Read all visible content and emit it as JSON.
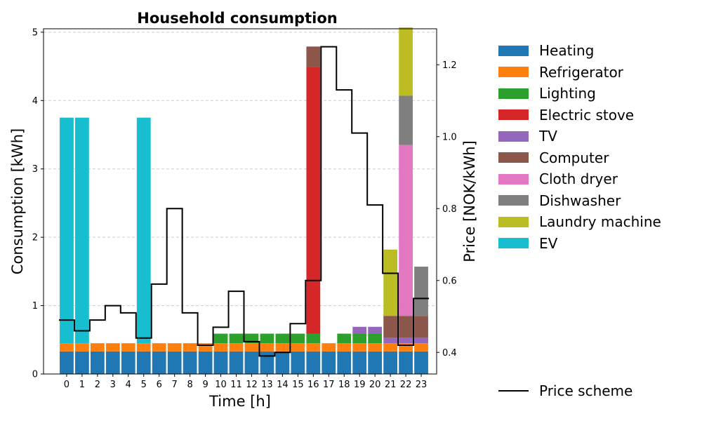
{
  "chart_data": {
    "type": "bar",
    "title": "Household consumption",
    "xlabel": "Time [h]",
    "ylabel": "Consumption [kWh]",
    "y2label": "Price [NOK/kWh]",
    "categories": [
      "0",
      "1",
      "2",
      "3",
      "4",
      "5",
      "6",
      "7",
      "8",
      "9",
      "10",
      "11",
      "12",
      "13",
      "14",
      "15",
      "16",
      "17",
      "18",
      "19",
      "20",
      "21",
      "22",
      "23"
    ],
    "ylim": [
      0,
      5.05
    ],
    "yticks": [
      "0",
      "1",
      "2",
      "3",
      "4",
      "5"
    ],
    "y2lim": [
      0.34,
      1.3
    ],
    "y2ticks": [
      0.4,
      0.6,
      0.8,
      1.0,
      1.2
    ],
    "y2ticklabels": [
      "0.4",
      "0.6",
      "0.8",
      "1.0",
      "1.2"
    ],
    "grid": "horizontal dashed",
    "legend_position": "right",
    "series": [
      {
        "name": "Heating",
        "color": "#1f77b4",
        "values": [
          0.33,
          0.33,
          0.33,
          0.33,
          0.33,
          0.33,
          0.33,
          0.33,
          0.33,
          0.33,
          0.33,
          0.33,
          0.33,
          0.33,
          0.33,
          0.33,
          0.33,
          0.33,
          0.33,
          0.33,
          0.33,
          0.33,
          0.33,
          0.33
        ]
      },
      {
        "name": "Refrigerator",
        "color": "#ff7f0e",
        "values": [
          0.12,
          0.12,
          0.12,
          0.12,
          0.12,
          0.12,
          0.12,
          0.12,
          0.12,
          0.12,
          0.12,
          0.12,
          0.12,
          0.12,
          0.12,
          0.12,
          0.12,
          0.12,
          0.12,
          0.12,
          0.12,
          0.12,
          0.12,
          0.12
        ]
      },
      {
        "name": "Lighting",
        "color": "#2ca02c",
        "values": [
          0,
          0,
          0,
          0,
          0,
          0,
          0,
          0,
          0,
          0,
          0.14,
          0.14,
          0.14,
          0.14,
          0.14,
          0.14,
          0.14,
          0,
          0.14,
          0.14,
          0.14,
          0,
          0,
          0
        ]
      },
      {
        "name": "Electric stove",
        "color": "#d62728",
        "values": [
          0,
          0,
          0,
          0,
          0,
          0,
          0,
          0,
          0,
          0,
          0,
          0,
          0,
          0,
          0,
          0,
          3.9,
          0,
          0,
          0,
          0,
          0,
          0,
          0
        ]
      },
      {
        "name": "TV",
        "color": "#9467bd",
        "values": [
          0,
          0,
          0,
          0,
          0,
          0,
          0,
          0,
          0,
          0,
          0,
          0,
          0,
          0,
          0,
          0,
          0,
          0,
          0,
          0.1,
          0.1,
          0.08,
          0.08,
          0.08
        ]
      },
      {
        "name": "Computer",
        "color": "#8c564b",
        "values": [
          0,
          0,
          0,
          0,
          0,
          0,
          0,
          0,
          0,
          0,
          0,
          0,
          0,
          0,
          0,
          0,
          0.3,
          0,
          0,
          0,
          0,
          0.32,
          0.32,
          0.32
        ]
      },
      {
        "name": "Cloth dryer",
        "color": "#e377c2",
        "values": [
          0,
          0,
          0,
          0,
          0,
          0,
          0,
          0,
          0,
          0,
          0,
          0,
          0,
          0,
          0,
          0,
          0,
          0,
          0,
          0,
          0,
          0,
          2.5,
          0
        ]
      },
      {
        "name": "Dishwasher",
        "color": "#7f7f7f",
        "values": [
          0,
          0,
          0,
          0,
          0,
          0,
          0,
          0,
          0,
          0,
          0,
          0,
          0,
          0,
          0,
          0,
          0,
          0,
          0,
          0,
          0,
          0,
          0.72,
          0.72
        ]
      },
      {
        "name": "Laundry machine",
        "color": "#bcbd22",
        "values": [
          0,
          0,
          0,
          0,
          0,
          0,
          0,
          0,
          0,
          0,
          0,
          0,
          0,
          0,
          0,
          0,
          0,
          0,
          0,
          0,
          0,
          0.97,
          1.0,
          0
        ]
      },
      {
        "name": "EV",
        "color": "#17becf",
        "values": [
          3.3,
          3.3,
          0,
          0,
          0,
          3.3,
          0,
          0,
          0,
          0,
          0,
          0,
          0,
          0,
          0,
          0,
          0,
          0,
          0,
          0,
          0,
          0,
          0,
          0
        ]
      }
    ],
    "price_series": {
      "name": "Price scheme",
      "color": "#000000",
      "values": [
        0.49,
        0.46,
        0.49,
        0.53,
        0.51,
        0.44,
        0.59,
        0.8,
        0.51,
        0.42,
        0.47,
        0.57,
        0.43,
        0.39,
        0.4,
        0.48,
        0.6,
        1.25,
        1.13,
        1.01,
        0.81,
        0.62,
        0.42,
        0.55
      ]
    }
  }
}
